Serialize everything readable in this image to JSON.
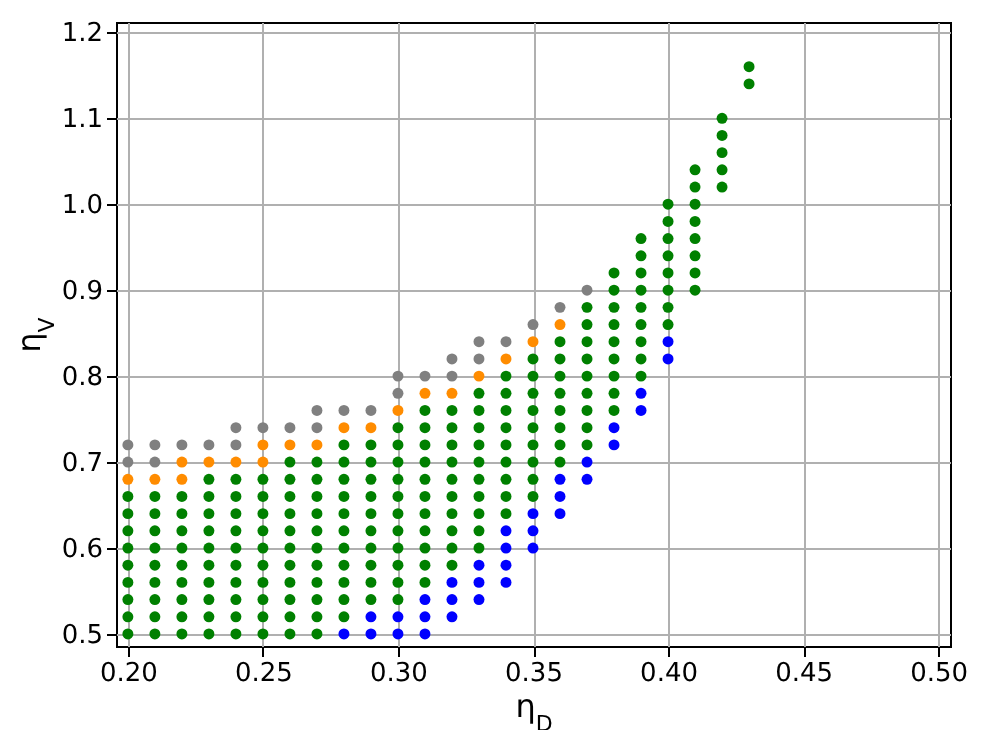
{
  "chart_data": {
    "type": "scatter",
    "xlabel": "η$_{D}$",
    "ylabel": "η$_{V}$",
    "xlim": [
      0.1956,
      0.5044
    ],
    "ylim": [
      0.486,
      1.212
    ],
    "xticks": [
      {
        "value": 0.2,
        "label": "0.20"
      },
      {
        "value": 0.25,
        "label": "0.25"
      },
      {
        "value": 0.3,
        "label": "0.30"
      },
      {
        "value": 0.35,
        "label": "0.35"
      },
      {
        "value": 0.4,
        "label": "0.40"
      },
      {
        "value": 0.45,
        "label": "0.45"
      },
      {
        "value": 0.5,
        "label": "0.50"
      }
    ],
    "yticks": [
      0.5,
      0.6,
      0.7,
      0.8,
      0.9,
      {
        "value": 1.0,
        "label": "1.0"
      },
      1.1,
      1.2
    ],
    "grid": true,
    "marker": "circle",
    "series": [
      {
        "color": "#008000",
        "x": [
          0.2,
          0.2,
          0.2,
          0.2,
          0.2,
          0.2,
          0.2,
          0.2,
          0.2,
          0.21,
          0.21,
          0.21,
          0.21,
          0.21,
          0.21,
          0.21,
          0.21,
          0.21,
          0.22,
          0.22,
          0.22,
          0.22,
          0.22,
          0.22,
          0.22,
          0.22,
          0.22,
          0.23,
          0.23,
          0.23,
          0.23,
          0.23,
          0.23,
          0.23,
          0.23,
          0.23,
          0.23,
          0.24,
          0.24,
          0.24,
          0.24,
          0.24,
          0.24,
          0.24,
          0.24,
          0.24,
          0.24,
          0.25,
          0.25,
          0.25,
          0.25,
          0.25,
          0.25,
          0.25,
          0.25,
          0.25,
          0.25,
          0.26,
          0.26,
          0.26,
          0.26,
          0.26,
          0.26,
          0.26,
          0.26,
          0.26,
          0.26,
          0.26,
          0.27,
          0.27,
          0.27,
          0.27,
          0.27,
          0.27,
          0.27,
          0.27,
          0.27,
          0.27,
          0.27,
          0.28,
          0.28,
          0.28,
          0.28,
          0.28,
          0.28,
          0.28,
          0.28,
          0.28,
          0.28,
          0.28,
          0.29,
          0.29,
          0.29,
          0.29,
          0.29,
          0.29,
          0.29,
          0.29,
          0.29,
          0.29,
          0.3,
          0.3,
          0.3,
          0.3,
          0.3,
          0.3,
          0.3,
          0.3,
          0.3,
          0.3,
          0.3,
          0.31,
          0.31,
          0.31,
          0.31,
          0.31,
          0.31,
          0.31,
          0.31,
          0.31,
          0.31,
          0.31,
          0.32,
          0.32,
          0.32,
          0.32,
          0.32,
          0.32,
          0.32,
          0.32,
          0.32,
          0.32,
          0.33,
          0.33,
          0.33,
          0.33,
          0.33,
          0.33,
          0.33,
          0.33,
          0.33,
          0.33,
          0.34,
          0.34,
          0.34,
          0.34,
          0.34,
          0.34,
          0.34,
          0.34,
          0.34,
          0.35,
          0.35,
          0.35,
          0.35,
          0.35,
          0.35,
          0.35,
          0.35,
          0.35,
          0.36,
          0.36,
          0.36,
          0.36,
          0.36,
          0.36,
          0.36,
          0.36,
          0.37,
          0.37,
          0.37,
          0.37,
          0.37,
          0.37,
          0.37,
          0.37,
          0.37,
          0.38,
          0.38,
          0.38,
          0.38,
          0.38,
          0.38,
          0.38,
          0.38,
          0.38,
          0.39,
          0.39,
          0.39,
          0.39,
          0.39,
          0.39,
          0.39,
          0.39,
          0.39,
          0.4,
          0.4,
          0.4,
          0.4,
          0.4,
          0.4,
          0.4,
          0.4,
          0.41,
          0.41,
          0.41,
          0.41,
          0.41,
          0.41,
          0.41,
          0.41,
          0.42,
          0.42,
          0.42,
          0.42,
          0.42,
          0.43,
          0.43
        ],
        "values": [
          0.5,
          0.52,
          0.54,
          0.56,
          0.58,
          0.6,
          0.62,
          0.64,
          0.66,
          0.5,
          0.52,
          0.54,
          0.56,
          0.58,
          0.6,
          0.62,
          0.64,
          0.66,
          0.5,
          0.52,
          0.54,
          0.56,
          0.58,
          0.6,
          0.62,
          0.64,
          0.66,
          0.5,
          0.52,
          0.54,
          0.56,
          0.58,
          0.6,
          0.62,
          0.64,
          0.66,
          0.68,
          0.5,
          0.52,
          0.54,
          0.56,
          0.58,
          0.6,
          0.62,
          0.64,
          0.66,
          0.68,
          0.5,
          0.52,
          0.54,
          0.56,
          0.58,
          0.6,
          0.62,
          0.64,
          0.66,
          0.68,
          0.5,
          0.52,
          0.54,
          0.56,
          0.58,
          0.6,
          0.62,
          0.64,
          0.66,
          0.68,
          0.7,
          0.5,
          0.52,
          0.54,
          0.56,
          0.58,
          0.6,
          0.62,
          0.64,
          0.66,
          0.68,
          0.7,
          0.52,
          0.54,
          0.56,
          0.58,
          0.6,
          0.62,
          0.64,
          0.66,
          0.68,
          0.7,
          0.72,
          0.54,
          0.56,
          0.58,
          0.6,
          0.62,
          0.64,
          0.66,
          0.68,
          0.7,
          0.72,
          0.54,
          0.56,
          0.58,
          0.6,
          0.62,
          0.64,
          0.66,
          0.68,
          0.7,
          0.72,
          0.74,
          0.56,
          0.58,
          0.6,
          0.62,
          0.64,
          0.66,
          0.68,
          0.7,
          0.72,
          0.74,
          0.76,
          0.58,
          0.6,
          0.62,
          0.64,
          0.66,
          0.68,
          0.7,
          0.72,
          0.74,
          0.76,
          0.6,
          0.62,
          0.64,
          0.66,
          0.68,
          0.7,
          0.72,
          0.74,
          0.76,
          0.78,
          0.64,
          0.66,
          0.68,
          0.7,
          0.72,
          0.74,
          0.76,
          0.78,
          0.8,
          0.66,
          0.68,
          0.7,
          0.72,
          0.74,
          0.76,
          0.78,
          0.8,
          0.82,
          0.7,
          0.72,
          0.74,
          0.76,
          0.78,
          0.8,
          0.82,
          0.84,
          0.72,
          0.74,
          0.76,
          0.78,
          0.8,
          0.82,
          0.84,
          0.86,
          0.88,
          0.76,
          0.78,
          0.8,
          0.82,
          0.84,
          0.86,
          0.88,
          0.9,
          0.92,
          0.8,
          0.82,
          0.84,
          0.86,
          0.88,
          0.9,
          0.92,
          0.94,
          0.96,
          0.86,
          0.88,
          0.9,
          0.92,
          0.94,
          0.96,
          0.98,
          1.0,
          0.9,
          0.92,
          0.94,
          0.96,
          0.98,
          1.0,
          1.02,
          1.04,
          1.02,
          1.04,
          1.06,
          1.08,
          1.1,
          1.14,
          1.16
        ]
      },
      {
        "color": "#808080",
        "x": [
          0.2,
          0.2,
          0.21,
          0.21,
          0.22,
          0.23,
          0.24,
          0.24,
          0.25,
          0.26,
          0.27,
          0.27,
          0.28,
          0.29,
          0.3,
          0.3,
          0.31,
          0.32,
          0.32,
          0.33,
          0.33,
          0.34,
          0.35,
          0.36,
          0.37
        ],
        "values": [
          0.72,
          0.7,
          0.72,
          0.7,
          0.72,
          0.72,
          0.74,
          0.72,
          0.74,
          0.74,
          0.76,
          0.74,
          0.76,
          0.76,
          0.8,
          0.78,
          0.8,
          0.82,
          0.8,
          0.84,
          0.82,
          0.84,
          0.86,
          0.88,
          0.9
        ]
      },
      {
        "color": "#ff8c00",
        "x": [
          0.2,
          0.21,
          0.22,
          0.22,
          0.23,
          0.24,
          0.25,
          0.25,
          0.26,
          0.27,
          0.28,
          0.29,
          0.3,
          0.31,
          0.32,
          0.33,
          0.34,
          0.35,
          0.36
        ],
        "values": [
          0.68,
          0.68,
          0.7,
          0.68,
          0.7,
          0.7,
          0.72,
          0.7,
          0.72,
          0.72,
          0.74,
          0.74,
          0.76,
          0.78,
          0.78,
          0.8,
          0.82,
          0.84,
          0.86
        ]
      },
      {
        "color": "#0000ff",
        "x": [
          0.28,
          0.29,
          0.29,
          0.3,
          0.3,
          0.31,
          0.31,
          0.31,
          0.32,
          0.32,
          0.32,
          0.33,
          0.33,
          0.33,
          0.34,
          0.34,
          0.34,
          0.34,
          0.35,
          0.35,
          0.35,
          0.36,
          0.36,
          0.36,
          0.37,
          0.37,
          0.38,
          0.38,
          0.39,
          0.39,
          0.4,
          0.4
        ],
        "values": [
          0.5,
          0.52,
          0.5,
          0.52,
          0.5,
          0.54,
          0.52,
          0.5,
          0.56,
          0.54,
          0.52,
          0.58,
          0.56,
          0.54,
          0.62,
          0.6,
          0.58,
          0.56,
          0.64,
          0.62,
          0.6,
          0.68,
          0.66,
          0.64,
          0.7,
          0.68,
          0.74,
          0.72,
          0.78,
          0.76,
          0.84,
          0.82
        ]
      }
    ]
  }
}
